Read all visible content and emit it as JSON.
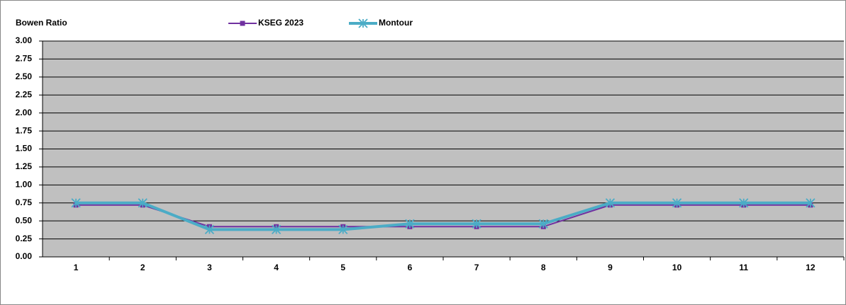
{
  "chart_data": {
    "type": "line",
    "y_label": "Bowen Ratio",
    "categories": [
      "1",
      "2",
      "3",
      "4",
      "5",
      "6",
      "7",
      "8",
      "9",
      "10",
      "11",
      "12"
    ],
    "series": [
      {
        "name": "KSEG 2023",
        "color": "#7030a0",
        "marker": "square",
        "values": [
          0.72,
          0.72,
          0.42,
          0.42,
          0.42,
          0.42,
          0.42,
          0.42,
          0.72,
          0.72,
          0.72,
          0.72
        ]
      },
      {
        "name": "Montour",
        "color": "#4bacc6",
        "marker": "asterisk",
        "values": [
          0.75,
          0.75,
          0.38,
          0.38,
          0.38,
          0.46,
          0.46,
          0.46,
          0.75,
          0.75,
          0.75,
          0.75
        ]
      }
    ],
    "ylim": [
      0,
      3
    ],
    "yticks": [
      {
        "value": 0,
        "label": "0.00"
      },
      {
        "value": 0.25,
        "label": "0.25"
      },
      {
        "value": 0.5,
        "label": "0.50"
      },
      {
        "value": 0.75,
        "label": "0.75"
      },
      {
        "value": 1,
        "label": "1.00"
      },
      {
        "value": 1.25,
        "label": "1.25"
      },
      {
        "value": 1.5,
        "label": "1.50"
      },
      {
        "value": 1.75,
        "label": "1.75"
      },
      {
        "value": 2,
        "label": "2.00"
      },
      {
        "value": 2.25,
        "label": "2.25"
      },
      {
        "value": 2.5,
        "label": "2.50"
      },
      {
        "value": 2.75,
        "label": "2.75"
      },
      {
        "value": 3,
        "label": "3.00"
      }
    ],
    "grid": true,
    "plot_background": "#c0c0c0",
    "legend": "top"
  }
}
